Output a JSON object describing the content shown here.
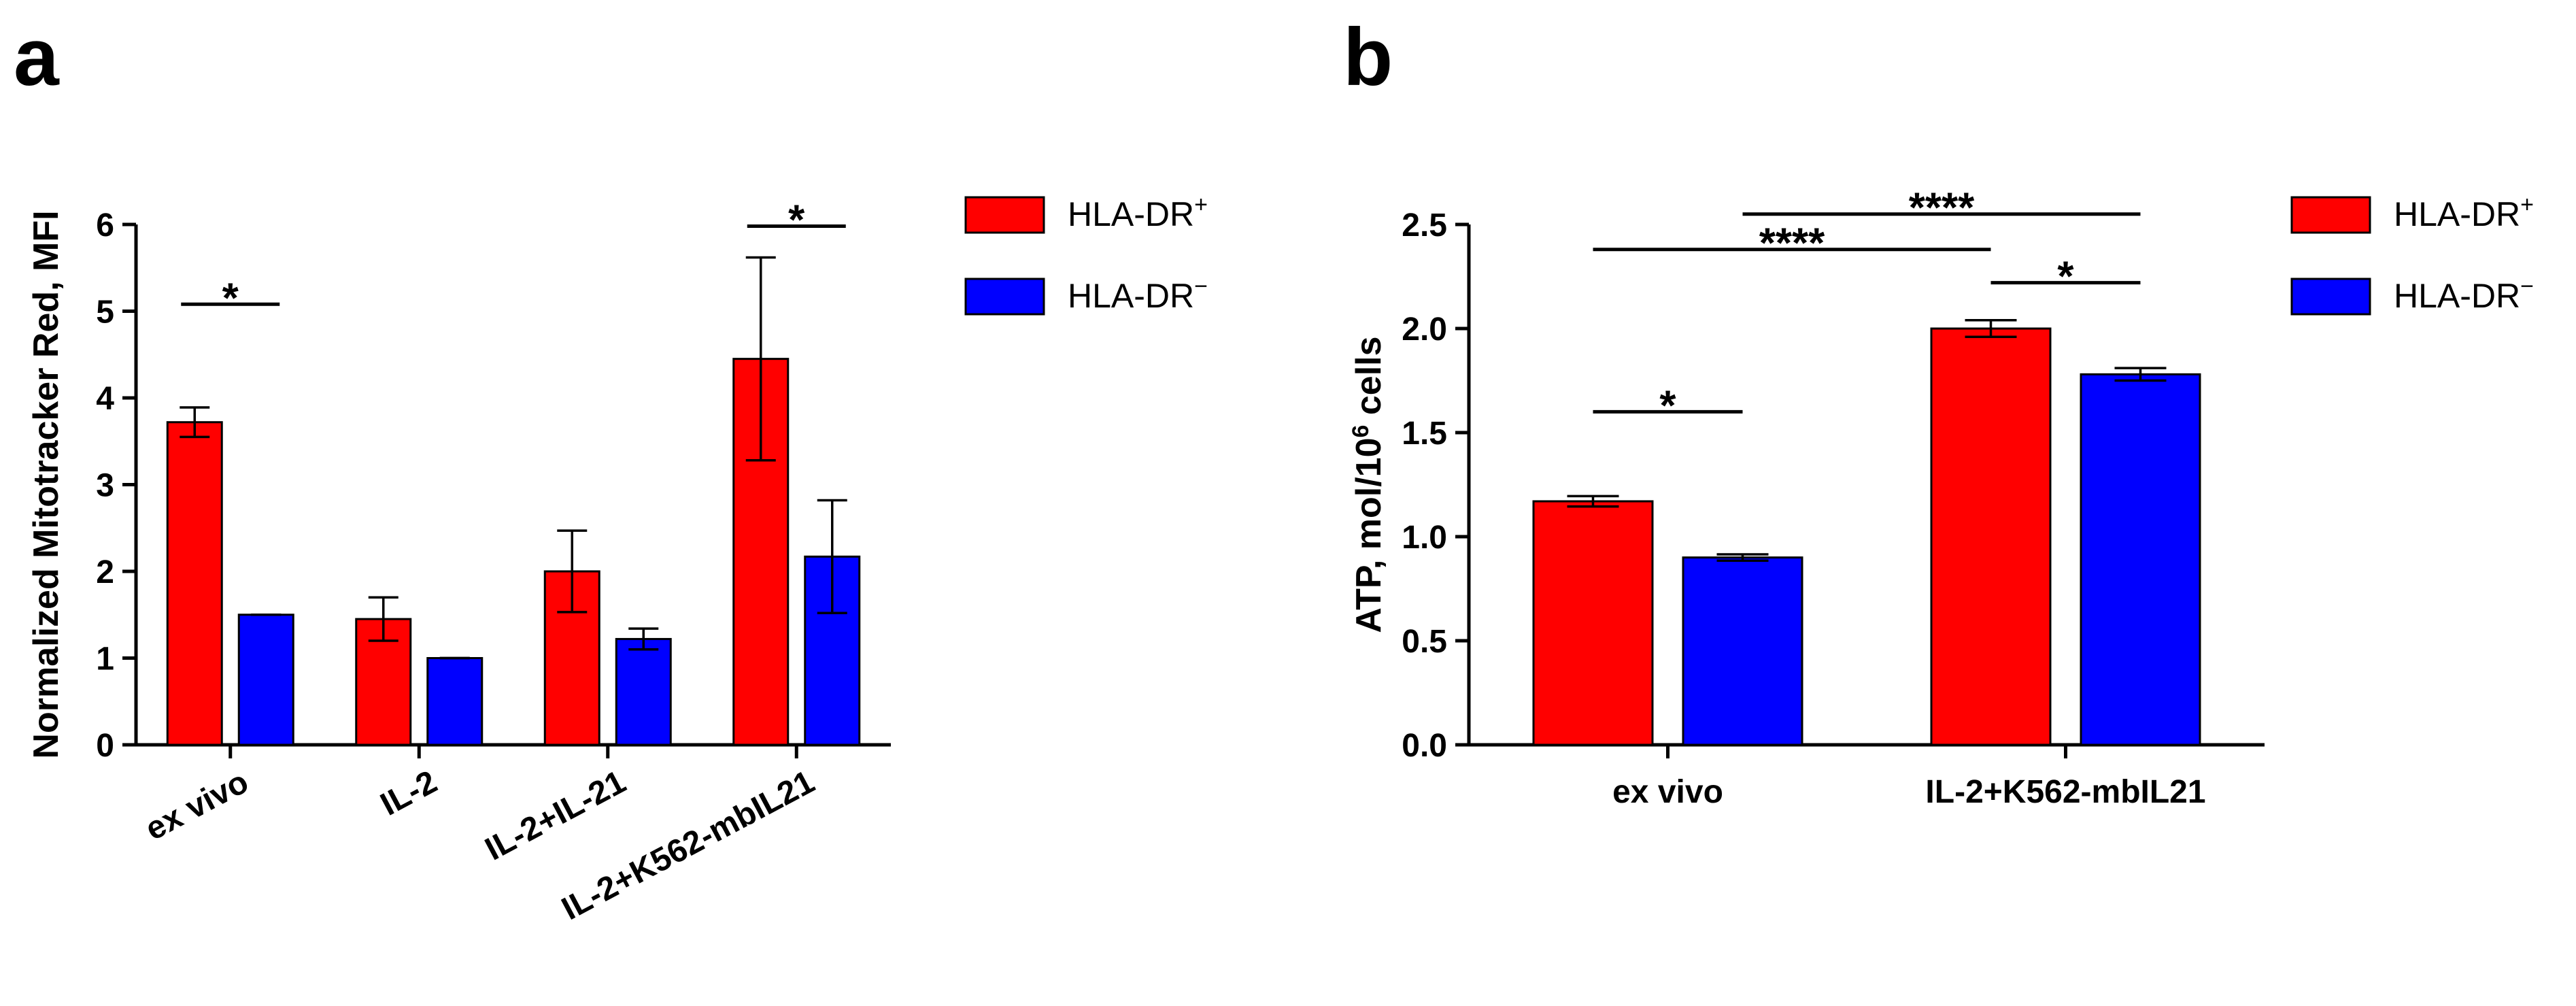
{
  "chart_data": [
    {
      "type": "bar",
      "panel": "a",
      "ylabel": "Normalized Mitotracker Red, MFI",
      "ylim": [
        0,
        6
      ],
      "yticks": [
        "0",
        "1",
        "2",
        "3",
        "4",
        "5",
        "6"
      ],
      "categories": [
        "ex vivo",
        "IL-2",
        "IL-2+IL-21",
        "IL-2+K562-mbIL21"
      ],
      "series": [
        {
          "name": "HLA-DR",
          "sup": "+",
          "color": "#ff0000",
          "values": [
            3.72,
            1.45,
            2.0,
            4.45
          ],
          "errors": [
            0.17,
            0.25,
            0.47,
            1.17
          ]
        },
        {
          "name": "HLA-DR",
          "sup": "−",
          "color": "#0000ff",
          "values": [
            1.5,
            1.0,
            1.22,
            2.17
          ],
          "errors": [
            0.0,
            0.0,
            0.12,
            0.65
          ]
        }
      ],
      "significance": [
        {
          "label": "*",
          "category": 0,
          "y": 5.08
        },
        {
          "label": "*",
          "category": 3,
          "y": 5.98
        }
      ]
    },
    {
      "type": "bar",
      "panel": "b",
      "ylabel_main": "ATP, mol/10",
      "ylabel_sup": "6",
      "ylabel_end": " cells",
      "ylim": [
        0,
        2.5
      ],
      "yticks": [
        "0.0",
        "0.5",
        "1.0",
        "1.5",
        "2.0",
        "2.5"
      ],
      "categories": [
        "ex vivo",
        "IL-2+K562-mbIL21"
      ],
      "series": [
        {
          "name": "HLA-DR",
          "sup": "+",
          "color": "#ff0000",
          "values": [
            1.17,
            2.0
          ],
          "errors": [
            0.025,
            0.04
          ]
        },
        {
          "name": "HLA-DR",
          "sup": "−",
          "color": "#0000ff",
          "values": [
            0.9,
            1.78
          ],
          "errors": [
            0.015,
            0.03
          ]
        }
      ],
      "significance": [
        {
          "label": "*",
          "from": [
            0,
            0
          ],
          "to": [
            0,
            1
          ],
          "y": 1.6
        },
        {
          "label": "*",
          "from": [
            1,
            0
          ],
          "to": [
            1,
            1
          ],
          "y": 2.22
        },
        {
          "label": "****",
          "from": [
            0,
            0
          ],
          "to": [
            1,
            0
          ],
          "y": 2.38
        },
        {
          "label": "****",
          "from": [
            0,
            1
          ],
          "to": [
            1,
            1
          ],
          "y": 2.55
        }
      ]
    }
  ],
  "panel_letters": [
    "a",
    "b"
  ]
}
